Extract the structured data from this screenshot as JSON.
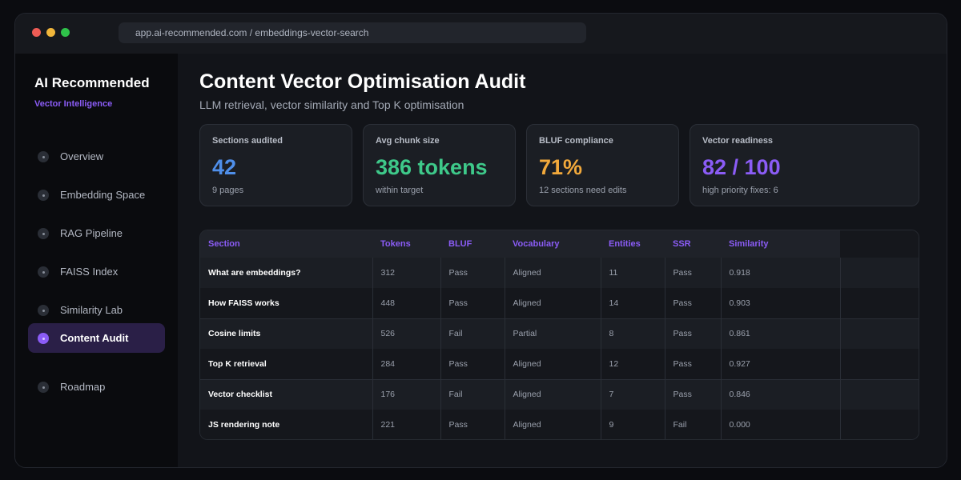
{
  "browser": {
    "url": "app.ai-recommended.com / embeddings-vector-search"
  },
  "sidebar": {
    "brand": "AI Recommended",
    "subtitle": "Vector Intelligence",
    "items": [
      {
        "label": "Overview",
        "icon": "dot-icon",
        "active": false
      },
      {
        "label": "Embedding Space",
        "icon": "dot-icon",
        "active": false
      },
      {
        "label": "RAG Pipeline",
        "icon": "dot-icon",
        "active": false
      },
      {
        "label": "FAISS Index",
        "icon": "dot-icon",
        "active": false
      },
      {
        "label": "Similarity Lab",
        "icon": "dot-icon",
        "active": false
      },
      {
        "label": "Content Audit",
        "icon": "dot-icon",
        "active": true
      },
      {
        "label": "Roadmap",
        "icon": "dot-icon",
        "active": false
      }
    ]
  },
  "header": {
    "title": "Content Vector Optimisation Audit",
    "subtitle": "LLM retrieval, vector similarity and Top K optimisation"
  },
  "stats": [
    {
      "label": "Sections audited",
      "value": "42",
      "note": "9 pages",
      "color": "#4f8fea"
    },
    {
      "label": "Avg chunk size",
      "value": "386 tokens",
      "note": "within target",
      "color": "#3ec98a"
    },
    {
      "label": "BLUF compliance",
      "value": "71%",
      "note": "12 sections need edits",
      "color": "#f2a93b"
    },
    {
      "label": "Vector readiness",
      "value": "82 / 100",
      "note": "high priority fixes: 6",
      "color": "#8b5cf6"
    }
  ],
  "table": {
    "columns": [
      "Section",
      "Tokens",
      "BLUF",
      "Vocabulary",
      "Entities",
      "SSR",
      "Similarity"
    ],
    "rows": [
      [
        "What are embeddings?",
        "312",
        "Pass",
        "Aligned",
        "11",
        "Pass",
        "0.918"
      ],
      [
        "How FAISS works",
        "448",
        "Pass",
        "Aligned",
        "14",
        "Pass",
        "0.903"
      ],
      [
        "Cosine limits",
        "526",
        "Fail",
        "Partial",
        "8",
        "Pass",
        "0.861"
      ],
      [
        "Top K retrieval",
        "284",
        "Pass",
        "Aligned",
        "12",
        "Pass",
        "0.927"
      ],
      [
        "Vector checklist",
        "176",
        "Fail",
        "Aligned",
        "7",
        "Pass",
        "0.846"
      ],
      [
        "JS rendering note",
        "221",
        "Pass",
        "Aligned",
        "9",
        "Fail",
        "0.000"
      ]
    ]
  },
  "colors": {
    "accent": "#8b5cf6"
  }
}
